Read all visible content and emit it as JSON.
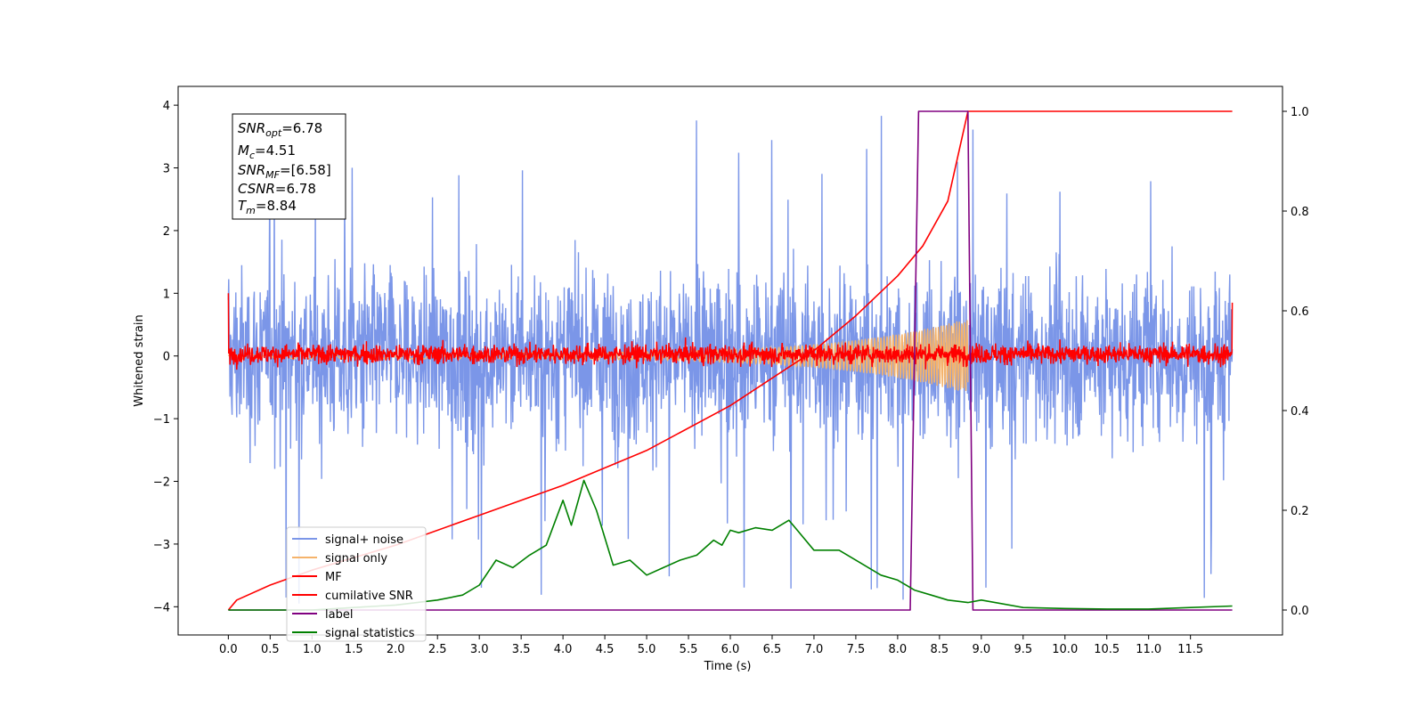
{
  "chart_data": {
    "type": "line",
    "xlabel": "Time (s)",
    "ylabel": "Whitened strain",
    "xlim": [
      -0.6,
      12.6
    ],
    "ylim": [
      -4.45,
      4.3
    ],
    "y2lim": [
      -0.05,
      1.05
    ],
    "x_ticks": [
      "0.0",
      "0.5",
      "1.0",
      "1.5",
      "2.0",
      "2.5",
      "3.0",
      "3.5",
      "4.0",
      "4.5",
      "5.0",
      "5.5",
      "6.0",
      "6.5",
      "7.0",
      "7.5",
      "8.0",
      "8.5",
      "9.0",
      "9.5",
      "10.0",
      "10.5",
      "11.0",
      "11.5"
    ],
    "y_ticks": [
      "4",
      "3",
      "2",
      "1",
      "0",
      "−1",
      "−2",
      "−3",
      "−4"
    ],
    "y2_ticks": [
      "1.0",
      "0.8",
      "0.6",
      "0.4",
      "0.2",
      "0.0"
    ],
    "grid": false,
    "legend_position": "lower-left",
    "info_box": {
      "snr_opt": {
        "base": "SNR",
        "sub": "opt",
        "value": "=6.78"
      },
      "mc": {
        "base": "M",
        "sub": "c",
        "value": "=4.51"
      },
      "snr_mf": {
        "base": "SNR",
        "sub": "MF",
        "value": "=[6.58]"
      },
      "csnr": {
        "base": "CSNR",
        "sub": "",
        "value": "=6.78"
      },
      "tm": {
        "base": "T",
        "sub": "m",
        "value": "=8.84"
      }
    },
    "series": [
      {
        "name": "signal+ noise",
        "color": "#7b96e8",
        "axis": "left",
        "style": "noise",
        "amplitude_range": [
          -4.2,
          4.0
        ],
        "x_range": [
          0,
          12
        ]
      },
      {
        "name": "signal only",
        "color": "#f5b36b",
        "axis": "left",
        "style": "chirp",
        "x_range": [
          0,
          8.84
        ],
        "envelope_peak": 0.6
      },
      {
        "name": "MF",
        "color": "#ff0000",
        "axis": "left",
        "style": "noise",
        "amplitude_range": [
          -0.25,
          0.55
        ],
        "x_range": [
          0,
          12
        ]
      },
      {
        "name": "cumilative SNR",
        "color": "#ff0000",
        "axis": "right",
        "x": [
          0,
          0.1,
          0.5,
          1,
          2,
          3,
          4,
          5,
          6,
          7,
          7.5,
          8,
          8.3,
          8.6,
          8.84,
          9,
          10,
          11,
          12
        ],
        "y": [
          0,
          0.02,
          0.05,
          0.08,
          0.13,
          0.19,
          0.25,
          0.32,
          0.41,
          0.52,
          0.59,
          0.67,
          0.73,
          0.82,
          1.0,
          1.0,
          1.0,
          1.0,
          1.0
        ]
      },
      {
        "name": "label",
        "color": "#800080",
        "axis": "right",
        "x": [
          0,
          8.15,
          8.25,
          8.84,
          8.9,
          12
        ],
        "y": [
          0,
          0,
          1,
          1,
          0,
          0
        ]
      },
      {
        "name": "signal statistics",
        "color": "#008000",
        "axis": "right",
        "x": [
          0,
          0.5,
          1.0,
          1.5,
          1.8,
          2.0,
          2.5,
          2.8,
          3.0,
          3.2,
          3.4,
          3.6,
          3.8,
          4.0,
          4.1,
          4.25,
          4.4,
          4.6,
          4.8,
          5.0,
          5.2,
          5.4,
          5.6,
          5.8,
          5.9,
          6.0,
          6.1,
          6.3,
          6.5,
          6.7,
          6.8,
          7.0,
          7.3,
          7.6,
          7.8,
          8.0,
          8.2,
          8.4,
          8.6,
          8.84,
          9.0,
          9.5,
          10,
          10.5,
          11,
          11.5,
          12
        ],
        "y": [
          0.0,
          0.0,
          0.0,
          0.005,
          0.008,
          0.01,
          0.02,
          0.03,
          0.05,
          0.1,
          0.085,
          0.11,
          0.13,
          0.22,
          0.17,
          0.26,
          0.2,
          0.09,
          0.1,
          0.07,
          0.085,
          0.1,
          0.11,
          0.14,
          0.13,
          0.16,
          0.155,
          0.165,
          0.16,
          0.18,
          0.16,
          0.12,
          0.12,
          0.09,
          0.07,
          0.06,
          0.04,
          0.03,
          0.02,
          0.015,
          0.02,
          0.005,
          0.003,
          0.002,
          0.002,
          0.005,
          0.008
        ]
      }
    ]
  }
}
